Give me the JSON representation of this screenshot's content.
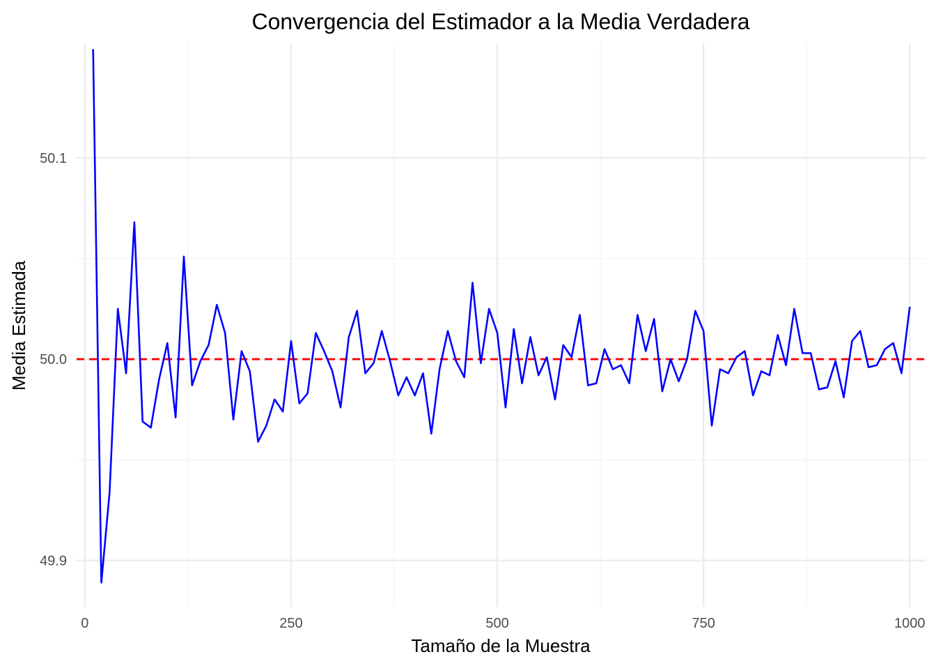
{
  "chart_data": {
    "type": "line",
    "title": "Convergencia del Estimador a la Media Verdadera",
    "xlabel": "Tamaño de la Muestra",
    "ylabel": "Media Estimada",
    "xlim": [
      -10,
      1020
    ],
    "ylim": [
      49.877,
      50.157
    ],
    "x_ticks": [
      0,
      250,
      500,
      750,
      1000
    ],
    "x_tick_labels": [
      "0",
      "250",
      "500",
      "750",
      "1000"
    ],
    "y_ticks": [
      49.9,
      50.0,
      50.1
    ],
    "y_tick_labels": [
      "49.9",
      "50.0",
      "50.1"
    ],
    "x_minor_ticks": [
      125,
      375,
      625,
      875
    ],
    "y_minor_ticks": [
      49.95,
      50.05
    ],
    "grid": true,
    "legend": "none",
    "reference_line": {
      "y": 50.0,
      "color": "#ff0000",
      "style": "dashed"
    },
    "series": [
      {
        "color": "#0000ff",
        "x": [
          10,
          20,
          30,
          40,
          50,
          60,
          70,
          80,
          90,
          100,
          110,
          120,
          130,
          140,
          150,
          160,
          170,
          180,
          190,
          200,
          210,
          220,
          230,
          240,
          250,
          260,
          270,
          280,
          290,
          300,
          310,
          320,
          330,
          340,
          350,
          360,
          370,
          380,
          390,
          400,
          410,
          420,
          430,
          440,
          450,
          460,
          470,
          480,
          490,
          500,
          510,
          520,
          530,
          540,
          550,
          560,
          570,
          580,
          590,
          600,
          610,
          620,
          630,
          640,
          650,
          660,
          670,
          680,
          690,
          700,
          710,
          720,
          730,
          740,
          750,
          760,
          770,
          780,
          790,
          800,
          810,
          820,
          830,
          840,
          850,
          860,
          870,
          880,
          890,
          900,
          910,
          920,
          930,
          940,
          950,
          960,
          970,
          980,
          990,
          1000
        ],
        "values": [
          50.154,
          49.889,
          49.934,
          50.025,
          49.993,
          50.068,
          49.969,
          49.966,
          49.99,
          50.008,
          49.971,
          50.051,
          49.987,
          49.999,
          50.007,
          50.027,
          50.013,
          49.97,
          50.004,
          49.994,
          49.959,
          49.967,
          49.98,
          49.974,
          50.009,
          49.978,
          49.983,
          50.013,
          50.004,
          49.994,
          49.976,
          50.011,
          50.024,
          49.993,
          49.998,
          50.014,
          49.999,
          49.982,
          49.991,
          49.982,
          49.993,
          49.963,
          49.995,
          50.014,
          49.999,
          49.991,
          50.038,
          49.998,
          50.025,
          50.013,
          49.976,
          50.015,
          49.988,
          50.011,
          49.992,
          50.001,
          49.98,
          50.007,
          50.001,
          50.022,
          49.987,
          49.988,
          50.005,
          49.995,
          49.997,
          49.988,
          50.022,
          50.004,
          50.02,
          49.984,
          50.0,
          49.989,
          50.0,
          50.024,
          50.014,
          49.967,
          49.995,
          49.993,
          50.001,
          50.004,
          49.982,
          49.994,
          49.992,
          50.012,
          49.997,
          50.025,
          50.003,
          50.003,
          49.985,
          49.986,
          49.999,
          49.981,
          50.009,
          50.014,
          49.996,
          49.997,
          50.005,
          50.008,
          49.993,
          50.026
        ]
      }
    ]
  }
}
